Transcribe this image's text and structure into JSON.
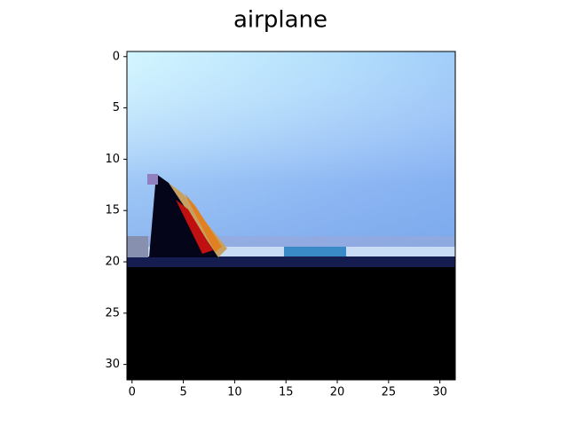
{
  "chart_data": {
    "type": "image",
    "title": "airplane",
    "xlim": [
      -0.5,
      31.5
    ],
    "ylim": [
      31.5,
      -0.5
    ],
    "xticks": [
      0,
      5,
      10,
      15,
      20,
      25,
      30
    ],
    "yticks": [
      0,
      5,
      10,
      15,
      20,
      25,
      30
    ]
  }
}
